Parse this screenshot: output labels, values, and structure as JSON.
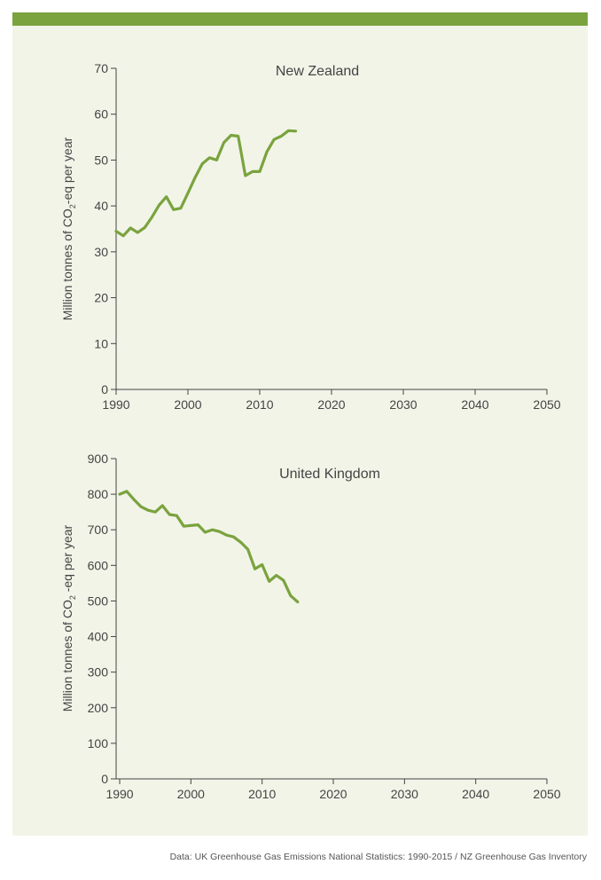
{
  "colors": {
    "line": "#7aa33e",
    "axis": "#444444",
    "panel": "#f2f4e8",
    "header_bar": "#7aa33e"
  },
  "source_note": "Data: UK Greenhouse Gas Emissions National Statistics: 1990-2015 / NZ Greenhouse Gas Inventory",
  "chart_data": [
    {
      "type": "line",
      "title": "New Zealand",
      "ylabel": {
        "prefix": "Million tonnes of CO",
        "sub": "2",
        "suffix": "-eq per year"
      },
      "xlim": [
        1990,
        2050
      ],
      "ylim": [
        0,
        70
      ],
      "xticks": [
        1990,
        2000,
        2010,
        2020,
        2030,
        2040,
        2050
      ],
      "yticks": [
        0,
        10,
        20,
        30,
        40,
        50,
        60,
        70
      ],
      "grid": false,
      "x": [
        1990,
        1991,
        1992,
        1993,
        1994,
        1995,
        1996,
        1997,
        1998,
        1999,
        2000,
        2001,
        2002,
        2003,
        2004,
        2005,
        2006,
        2007,
        2008,
        2009,
        2010,
        2011,
        2012,
        2013,
        2014,
        2015
      ],
      "values": [
        34.5,
        33.5,
        35.2,
        34.2,
        35.3,
        37.6,
        40.2,
        42.0,
        39.2,
        39.5,
        42.8,
        46.2,
        49.2,
        50.5,
        50.0,
        53.8,
        55.4,
        55.2,
        46.6,
        47.5,
        47.5,
        51.8,
        54.5,
        55.2,
        56.4,
        56.3
      ]
    },
    {
      "type": "line",
      "title": "United Kingdom",
      "ylabel": {
        "prefix": "Million tonnes of CO",
        "sub": "2",
        "suffix": " -eq per year"
      },
      "xlim": [
        1989.5,
        2050
      ],
      "ylim": [
        0,
        900
      ],
      "xticks": [
        1990,
        2000,
        2010,
        2020,
        2030,
        2040,
        2050
      ],
      "yticks": [
        0,
        100,
        200,
        300,
        400,
        500,
        600,
        700,
        800,
        900
      ],
      "grid": false,
      "x": [
        1990,
        1991,
        1992,
        1993,
        1994,
        1995,
        1996,
        1997,
        1998,
        1999,
        2000,
        2001,
        2002,
        2003,
        2004,
        2005,
        2006,
        2007,
        2008,
        2009,
        2010,
        2011,
        2012,
        2013,
        2014,
        2015
      ],
      "values": [
        800,
        808,
        785,
        765,
        755,
        750,
        768,
        743,
        740,
        710,
        712,
        714,
        693,
        700,
        695,
        685,
        680,
        665,
        645,
        590,
        602,
        555,
        572,
        558,
        515,
        497
      ]
    }
  ]
}
